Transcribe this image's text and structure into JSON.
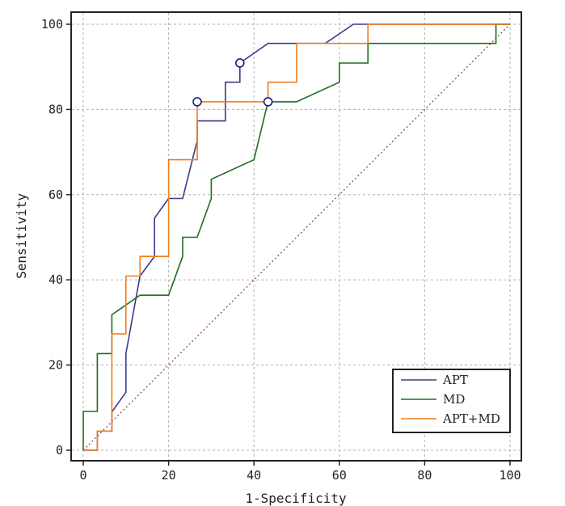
{
  "chart_data": {
    "type": "line",
    "title": "",
    "xlabel": "1-Specificity",
    "ylabel": "Sensitivity",
    "xlim": [
      0,
      100
    ],
    "ylim": [
      0,
      100
    ],
    "grid": true,
    "legend_position": "bottom-right",
    "x_ticks": [
      0,
      20,
      40,
      60,
      80,
      100
    ],
    "y_ticks": [
      0,
      20,
      40,
      60,
      80,
      100
    ],
    "series": [
      {
        "name": "APT",
        "color": "#3a3a8c",
        "points": [
          [
            0,
            0
          ],
          [
            3.3,
            0
          ],
          [
            3.3,
            4.5
          ],
          [
            6.7,
            4.5
          ],
          [
            6.7,
            9
          ],
          [
            10,
            13.6
          ],
          [
            10,
            22.7
          ],
          [
            13.3,
            40.9
          ],
          [
            16.7,
            45.5
          ],
          [
            16.7,
            54.5
          ],
          [
            20,
            59.1
          ],
          [
            23.3,
            59.1
          ],
          [
            26.7,
            72.7
          ],
          [
            26.7,
            77.3
          ],
          [
            33.3,
            77.3
          ],
          [
            33.3,
            86.4
          ],
          [
            36.7,
            86.4
          ],
          [
            36.7,
            90.9
          ],
          [
            43.3,
            95.5
          ],
          [
            56.7,
            95.5
          ],
          [
            63.3,
            100
          ],
          [
            100,
            100
          ]
        ],
        "markers": [
          [
            36.7,
            90.9
          ]
        ]
      },
      {
        "name": "MD",
        "color": "#1e6e1e",
        "points": [
          [
            0,
            0
          ],
          [
            0,
            9.1
          ],
          [
            3.3,
            9.1
          ],
          [
            3.3,
            22.7
          ],
          [
            6.7,
            22.7
          ],
          [
            6.7,
            31.8
          ],
          [
            13.3,
            36.4
          ],
          [
            20,
            36.4
          ],
          [
            23.3,
            45.5
          ],
          [
            23.3,
            50
          ],
          [
            26.7,
            50
          ],
          [
            30,
            59.1
          ],
          [
            30,
            63.6
          ],
          [
            40,
            68.2
          ],
          [
            43.3,
            81.8
          ],
          [
            50,
            81.8
          ],
          [
            60,
            86.4
          ],
          [
            60,
            90.9
          ],
          [
            66.7,
            90.9
          ],
          [
            66.7,
            95.5
          ],
          [
            96.7,
            95.5
          ],
          [
            96.7,
            100
          ],
          [
            100,
            100
          ]
        ],
        "markers": []
      },
      {
        "name": "APT+MD",
        "color": "#f07d1e",
        "points": [
          [
            0,
            0
          ],
          [
            3.3,
            0
          ],
          [
            3.3,
            4.5
          ],
          [
            6.7,
            4.5
          ],
          [
            6.7,
            27.3
          ],
          [
            10,
            27.3
          ],
          [
            10,
            40.9
          ],
          [
            13.3,
            40.9
          ],
          [
            13.3,
            45.5
          ],
          [
            20,
            45.5
          ],
          [
            20,
            68.2
          ],
          [
            26.7,
            68.2
          ],
          [
            26.7,
            81.8
          ],
          [
            43.3,
            81.8
          ],
          [
            43.3,
            86.4
          ],
          [
            50,
            86.4
          ],
          [
            50,
            95.5
          ],
          [
            66.7,
            95.5
          ],
          [
            66.7,
            100
          ],
          [
            100,
            100
          ]
        ],
        "markers": [
          [
            26.7,
            81.8
          ],
          [
            43.3,
            81.8
          ]
        ]
      }
    ],
    "reference_line": {
      "name": "diagonal",
      "color": "#a03040",
      "points": [
        [
          0,
          0
        ],
        [
          100,
          100
        ]
      ]
    },
    "marker_color": "#1a1a7a"
  }
}
